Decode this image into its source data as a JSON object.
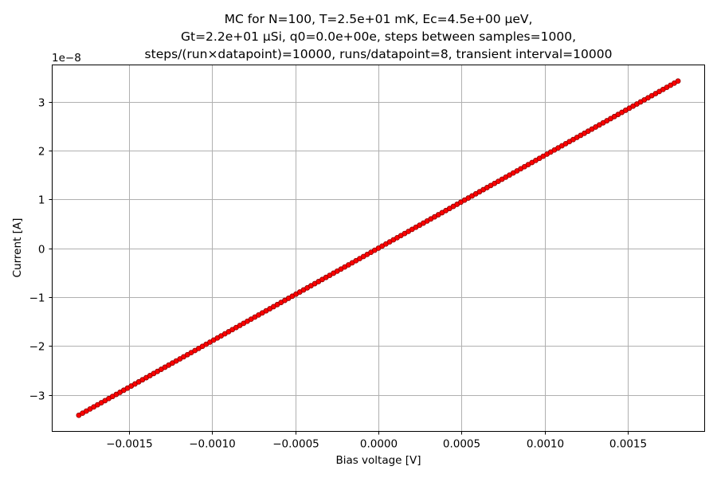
{
  "chart_data": {
    "type": "scatter",
    "title_lines": [
      "MC for N=100, T=2.5e+01 mK, Ec=4.5e+00 μeV,",
      "Gt=2.2e+01 μSi, q0=0.0e+00e, steps between samples=1000,",
      "steps/(run×datapoint)=10000, runs/datapoint=8, transient interval=10000"
    ],
    "xlabel": "Bias voltage [V]",
    "ylabel": "Current [A]",
    "y_offset_label": "1e−8",
    "y_scale_factor": 1e-08,
    "xlim": [
      -0.00196,
      0.00196
    ],
    "ylim": [
      -3.75e-08,
      3.75e-08
    ],
    "x_ticks": [
      -0.0015,
      -0.001,
      -0.0005,
      0.0,
      0.0005,
      0.001,
      0.0015
    ],
    "x_tick_labels": [
      "−0.0015",
      "−0.0010",
      "−0.0005",
      "0.0000",
      "0.0005",
      "0.0010",
      "0.0015"
    ],
    "y_ticks": [
      -3e-08,
      -2e-08,
      -1e-08,
      0,
      1e-08,
      2e-08,
      3e-08
    ],
    "y_tick_labels": [
      "−3",
      "−2",
      "−1",
      "0",
      "1",
      "2",
      "3"
    ],
    "grid": true,
    "legend": "none",
    "series": [
      {
        "marker_color": "#ff0000",
        "marker_edge_color": "#8b0000",
        "x_start": -0.0018,
        "x_end": 0.0018,
        "x_step": 2.25e-05,
        "slope_A_per_V": 1.9e-05,
        "x_extra": [],
        "y_extra": []
      }
    ]
  }
}
